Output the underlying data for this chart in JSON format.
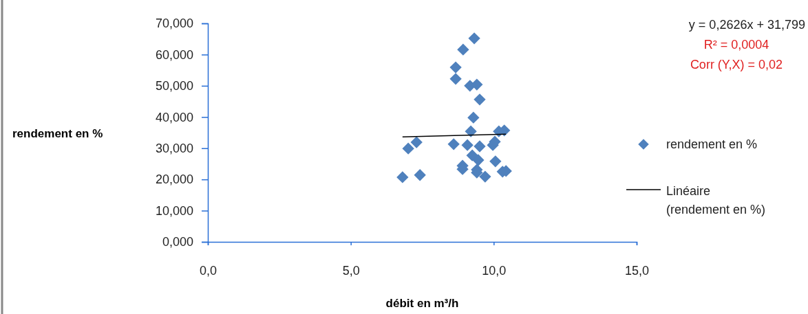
{
  "chart_data": {
    "type": "scatter",
    "xlabel": "débit en m³/h",
    "ylabel": "rendement en %",
    "xlim": [
      0,
      15
    ],
    "ylim": [
      0,
      70
    ],
    "xticks": [
      {
        "value": 0,
        "label": "0,0"
      },
      {
        "value": 5,
        "label": "5,0"
      },
      {
        "value": 10,
        "label": "10,0"
      },
      {
        "value": 15,
        "label": "15,0"
      }
    ],
    "yticks": [
      {
        "value": 0,
        "label": "0,000"
      },
      {
        "value": 10,
        "label": "10,000"
      },
      {
        "value": 20,
        "label": "20,000"
      },
      {
        "value": 30,
        "label": "30,000"
      },
      {
        "value": 40,
        "label": "40,000"
      },
      {
        "value": 50,
        "label": "50,000"
      },
      {
        "value": 60,
        "label": "60,000"
      },
      {
        "value": 70,
        "label": "70,000"
      }
    ],
    "marker": "diamond",
    "legend": "right",
    "grid": false,
    "annotations": [
      "y = 0,2626x + 31,799",
      "R² = 0,0004",
      "Corr (Y,X) = 0,02"
    ],
    "series": [
      {
        "name": "rendement en %",
        "color": "#4f81bd",
        "x": [
          6.81,
          7.01,
          7.3,
          7.42,
          8.6,
          8.93,
          9.32,
          8.67,
          8.67,
          9.17,
          9.41,
          9.51,
          9.29,
          9.2,
          9.08,
          9.51,
          9.25,
          9.46,
          8.91,
          8.91,
          9.41,
          9.41,
          9.7,
          9.97,
          10.04,
          10.18,
          10.37,
          10.06,
          10.31,
          10.43
        ],
        "values": [
          20.7,
          29.9,
          31.9,
          21.4,
          31.3,
          61.6,
          65.2,
          55.9,
          52.2,
          50.0,
          50.4,
          45.6,
          39.8,
          35.4,
          31.0,
          30.6,
          27.7,
          26.2,
          24.4,
          23.3,
          23.1,
          22.2,
          20.9,
          31.0,
          32.1,
          35.4,
          35.7,
          25.8,
          22.5,
          22.7
        ]
      },
      {
        "name": "Linéaire (rendement en %)",
        "type": "line",
        "color": "#000000",
        "line_style": "solid",
        "marker": "none",
        "x": [
          6.81,
          10.43
        ],
        "values": [
          33.6,
          34.5
        ]
      }
    ]
  }
}
